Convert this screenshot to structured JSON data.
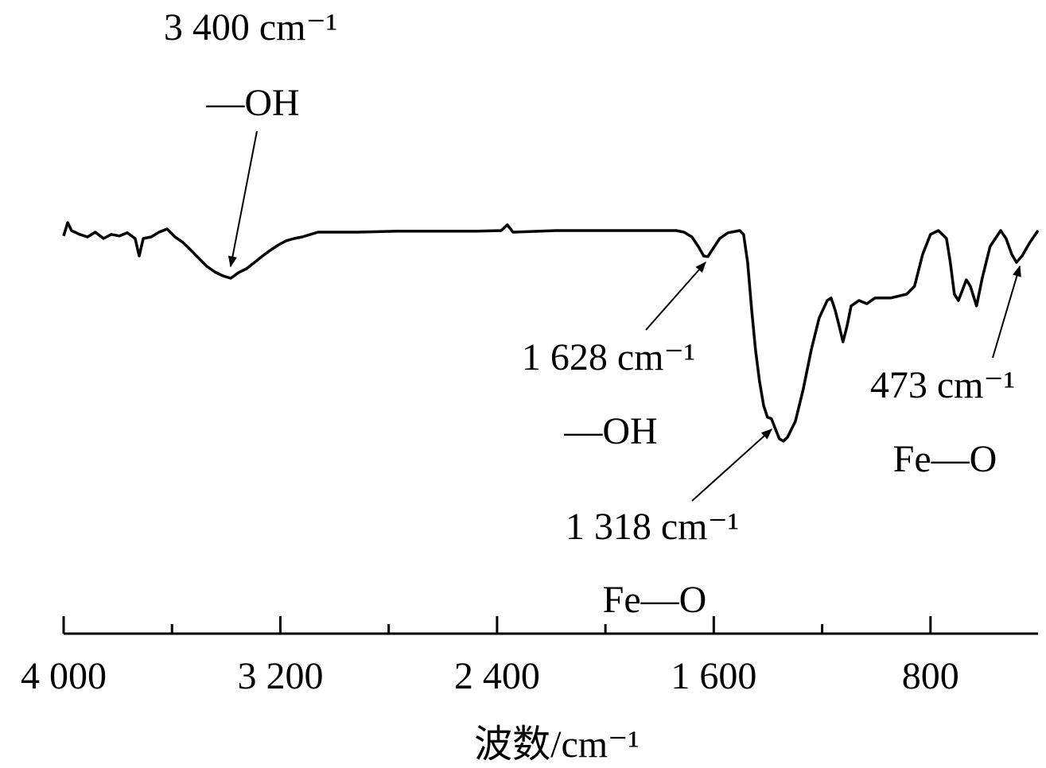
{
  "chart_data": {
    "type": "line",
    "xlabel": "波数/cm⁻¹",
    "xlim": [
      4000,
      403
    ],
    "xticks": [
      {
        "value": 4000,
        "label": "4 000"
      },
      {
        "value": 3200,
        "label": "3 200"
      },
      {
        "value": 2400,
        "label": "2 400"
      },
      {
        "value": 1600,
        "label": "1 600"
      },
      800
    ],
    "xminorticks": [
      3600,
      2800,
      2000,
      1200
    ],
    "ylim": [
      0,
      100
    ],
    "series": [
      {
        "color": "#000000",
        "x": [
          4000,
          3985,
          3971,
          3941,
          3912,
          3883,
          3853,
          3824,
          3794,
          3765,
          3736,
          3721,
          3706,
          3677,
          3648,
          3618,
          3589,
          3560,
          3530,
          3501,
          3472,
          3442,
          3413,
          3383,
          3354,
          3325,
          3295,
          3266,
          3237,
          3207,
          3178,
          3149,
          3119,
          3061,
          2914,
          2767,
          2620,
          2473,
          2385,
          2362,
          2341,
          2180,
          2033,
          1886,
          1739,
          1710,
          1681,
          1657,
          1637,
          1622,
          1607,
          1578,
          1548,
          1504,
          1490,
          1475,
          1460,
          1446,
          1431,
          1416,
          1402,
          1387,
          1372,
          1358,
          1343,
          1328,
          1299,
          1270,
          1240,
          1211,
          1181,
          1167,
          1152,
          1137,
          1123,
          1108,
          1093,
          1064,
          1035,
          1005,
          947,
          888,
          859,
          829,
          800,
          771,
          741,
          727,
          712,
          697,
          682,
          668,
          653,
          630,
          609,
          580,
          541,
          521,
          500,
          483,
          462,
          433,
          403
        ],
        "values": [
          75.8,
          80,
          77.5,
          76.3,
          75.5,
          77,
          75,
          76.3,
          75.8,
          76.8,
          75,
          69.5,
          75,
          75.5,
          77,
          78,
          75.5,
          73.8,
          71.3,
          68.8,
          66.3,
          64.5,
          63.3,
          62.5,
          64.3,
          65.5,
          67.5,
          69.5,
          71.3,
          73,
          74.3,
          75,
          75.5,
          77,
          77,
          77.3,
          77.3,
          77.3,
          77.5,
          79.3,
          77,
          77.5,
          77.5,
          77.5,
          77.5,
          77,
          75.5,
          72.5,
          69.5,
          69.3,
          71.3,
          75,
          76.8,
          77.5,
          76.3,
          67.5,
          52.5,
          40,
          30,
          22.5,
          18.8,
          18.3,
          15,
          12,
          11.3,
          12.5,
          17.5,
          27.5,
          40,
          50,
          55.5,
          56.3,
          52.5,
          47.5,
          42.5,
          47.5,
          53.8,
          55.5,
          54.5,
          56.3,
          56.3,
          57.5,
          60,
          70,
          76.3,
          77.5,
          75,
          67.5,
          57.5,
          55.5,
          58.8,
          62,
          60,
          53.8,
          62.5,
          72.5,
          77.5,
          75,
          70,
          67.5,
          69.5,
          73.8,
          77.5
        ]
      }
    ],
    "annotations": [
      {
        "text": "3 400 cm⁻¹",
        "group": "—OH"
      },
      {
        "text": "1 628 cm⁻¹",
        "group": "—OH"
      },
      {
        "text": "1 318 cm⁻¹",
        "group": "Fe—O"
      },
      {
        "text": "473 cm⁻¹",
        "group": "Fe—O"
      }
    ]
  }
}
